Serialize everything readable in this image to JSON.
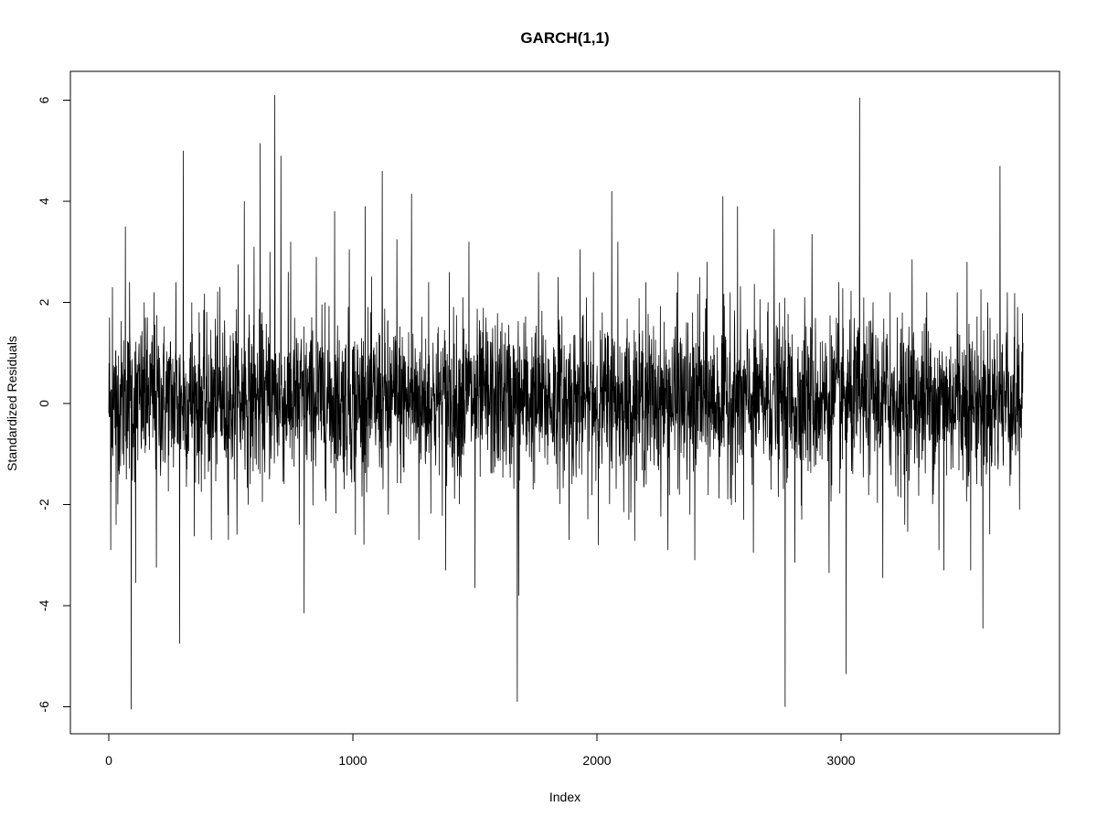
{
  "chart_data": {
    "type": "line",
    "title": "GARCH(1,1)",
    "xlabel": "Index",
    "ylabel": "Standardized Residuals",
    "n": 3750,
    "xlim": [
      0,
      3750
    ],
    "ylim": [
      -6.2,
      6.2
    ],
    "xticks": [
      0,
      1000,
      2000,
      3000
    ],
    "yticks": [
      -6,
      -4,
      -2,
      0,
      2,
      4,
      6
    ],
    "grid": false,
    "legend": "none",
    "line_color": "#000000",
    "notable_points": [
      {
        "x": 3,
        "y": 1.7
      },
      {
        "x": 8,
        "y": -2.9
      },
      {
        "x": 15,
        "y": 2.3
      },
      {
        "x": 30,
        "y": -2.4
      },
      {
        "x": 68,
        "y": 3.5
      },
      {
        "x": 85,
        "y": 2.4
      },
      {
        "x": 92,
        "y": -6.05
      },
      {
        "x": 110,
        "y": -3.55
      },
      {
        "x": 150,
        "y": 1.7
      },
      {
        "x": 185,
        "y": 2.2
      },
      {
        "x": 195,
        "y": -3.25
      },
      {
        "x": 275,
        "y": 2.4
      },
      {
        "x": 290,
        "y": -4.75
      },
      {
        "x": 305,
        "y": 5.0
      },
      {
        "x": 340,
        "y": 2.0
      },
      {
        "x": 420,
        "y": -2.7
      },
      {
        "x": 455,
        "y": 2.3
      },
      {
        "x": 490,
        "y": -2.7
      },
      {
        "x": 530,
        "y": 2.75
      },
      {
        "x": 555,
        "y": 4.0
      },
      {
        "x": 595,
        "y": 3.1
      },
      {
        "x": 620,
        "y": 5.15
      },
      {
        "x": 660,
        "y": 3.0
      },
      {
        "x": 680,
        "y": 6.1
      },
      {
        "x": 705,
        "y": 4.9
      },
      {
        "x": 745,
        "y": 3.2
      },
      {
        "x": 780,
        "y": -2.4
      },
      {
        "x": 800,
        "y": -4.15
      },
      {
        "x": 850,
        "y": 2.9
      },
      {
        "x": 885,
        "y": 2.0
      },
      {
        "x": 925,
        "y": 3.8
      },
      {
        "x": 985,
        "y": 3.05
      },
      {
        "x": 1010,
        "y": -2.6
      },
      {
        "x": 1050,
        "y": 3.9
      },
      {
        "x": 1120,
        "y": 4.6
      },
      {
        "x": 1145,
        "y": -2.2
      },
      {
        "x": 1180,
        "y": 3.25
      },
      {
        "x": 1240,
        "y": 4.15
      },
      {
        "x": 1270,
        "y": -2.7
      },
      {
        "x": 1310,
        "y": 2.4
      },
      {
        "x": 1380,
        "y": -3.3
      },
      {
        "x": 1395,
        "y": 2.6
      },
      {
        "x": 1450,
        "y": 2.1
      },
      {
        "x": 1475,
        "y": 3.2
      },
      {
        "x": 1500,
        "y": -3.65
      },
      {
        "x": 1545,
        "y": 1.7
      },
      {
        "x": 1610,
        "y": 1.6
      },
      {
        "x": 1673,
        "y": -5.9
      },
      {
        "x": 1679,
        "y": -3.8
      },
      {
        "x": 1700,
        "y": 1.6
      },
      {
        "x": 1760,
        "y": 2.6
      },
      {
        "x": 1840,
        "y": 2.5
      },
      {
        "x": 1885,
        "y": -2.7
      },
      {
        "x": 1930,
        "y": 3.05
      },
      {
        "x": 1985,
        "y": 2.6
      },
      {
        "x": 2005,
        "y": -2.8
      },
      {
        "x": 2060,
        "y": 4.2
      },
      {
        "x": 2085,
        "y": 3.2
      },
      {
        "x": 2130,
        "y": -2.3
      },
      {
        "x": 2200,
        "y": 2.4
      },
      {
        "x": 2290,
        "y": -2.9
      },
      {
        "x": 2330,
        "y": 2.6
      },
      {
        "x": 2380,
        "y": -2.2
      },
      {
        "x": 2400,
        "y": -3.1
      },
      {
        "x": 2420,
        "y": 2.5
      },
      {
        "x": 2450,
        "y": 2.8
      },
      {
        "x": 2515,
        "y": 4.1
      },
      {
        "x": 2545,
        "y": 2.2
      },
      {
        "x": 2575,
        "y": 3.9
      },
      {
        "x": 2600,
        "y": -2.3
      },
      {
        "x": 2640,
        "y": -2.95
      },
      {
        "x": 2700,
        "y": 2.0
      },
      {
        "x": 2725,
        "y": 3.45
      },
      {
        "x": 2770,
        "y": -6.0
      },
      {
        "x": 2810,
        "y": -3.15
      },
      {
        "x": 2850,
        "y": 2.1
      },
      {
        "x": 2880,
        "y": 3.35
      },
      {
        "x": 2950,
        "y": -3.35
      },
      {
        "x": 2990,
        "y": 2.4
      },
      {
        "x": 3020,
        "y": -5.35
      },
      {
        "x": 3075,
        "y": 6.05
      },
      {
        "x": 3130,
        "y": 2.0
      },
      {
        "x": 3170,
        "y": -3.45
      },
      {
        "x": 3200,
        "y": 2.2
      },
      {
        "x": 3260,
        "y": -2.4
      },
      {
        "x": 3290,
        "y": 2.85
      },
      {
        "x": 3350,
        "y": 2.2
      },
      {
        "x": 3400,
        "y": -2.9
      },
      {
        "x": 3420,
        "y": -3.3
      },
      {
        "x": 3475,
        "y": 2.2
      },
      {
        "x": 3515,
        "y": 2.8
      },
      {
        "x": 3530,
        "y": -3.3
      },
      {
        "x": 3580,
        "y": -4.45
      },
      {
        "x": 3600,
        "y": 2.0
      },
      {
        "x": 3650,
        "y": 4.7
      },
      {
        "x": 3680,
        "y": 2.2
      },
      {
        "x": 3730,
        "y": -2.1
      },
      {
        "x": 3745,
        "y": 1.2
      }
    ]
  }
}
